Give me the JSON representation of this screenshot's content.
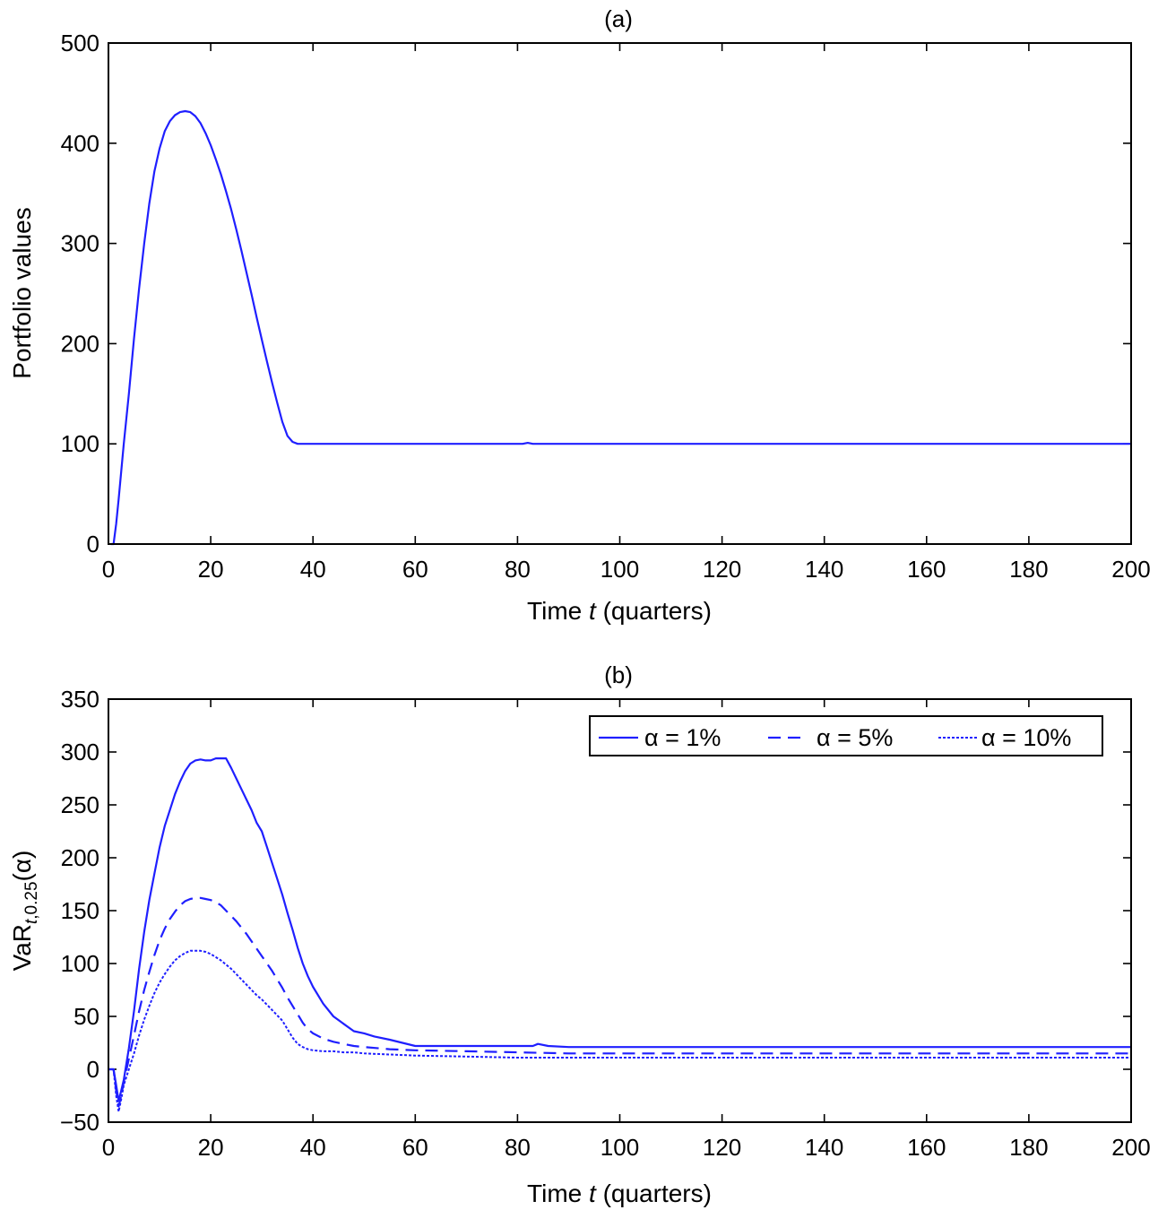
{
  "chart_data": [
    {
      "type": "line",
      "title": "(a)",
      "xlabel": "Time t (quarters)",
      "xlabel_parts": {
        "pre": "Time ",
        "italic": "t",
        "post": " (quarters)"
      },
      "ylabel": "Portfolio values",
      "xlim": [
        0,
        200
      ],
      "ylim": [
        0,
        500
      ],
      "xticks": [
        0,
        20,
        40,
        60,
        80,
        100,
        120,
        140,
        160,
        180,
        200
      ],
      "yticks": [
        0,
        100,
        200,
        300,
        400,
        500
      ],
      "grid": false,
      "series": [
        {
          "color": "#1f1fff",
          "style": "solid",
          "x": [
            0.5,
            1,
            1.5,
            2,
            3,
            4,
            5,
            6,
            7,
            8,
            9,
            10,
            11,
            12,
            13,
            14,
            15,
            16,
            17,
            18,
            19,
            20,
            21,
            22,
            23,
            24,
            25,
            26,
            27,
            28,
            29,
            30,
            31,
            32,
            33,
            34,
            35,
            36,
            37,
            38,
            40,
            50,
            60,
            70,
            80,
            81,
            82,
            83,
            90,
            100,
            120,
            140,
            160,
            180,
            200
          ],
          "y": [
            0,
            0,
            20,
            45,
            100,
            150,
            205,
            255,
            300,
            340,
            372,
            395,
            412,
            422,
            428,
            431,
            432,
            431,
            427,
            420,
            410,
            398,
            384,
            369,
            352,
            334,
            314,
            293,
            271,
            249,
            226,
            204,
            182,
            161,
            141,
            122,
            108,
            102,
            100,
            100,
            100,
            100,
            100,
            100,
            100,
            100,
            101,
            100,
            100,
            100,
            100,
            100,
            100,
            100,
            100
          ]
        }
      ]
    },
    {
      "type": "line",
      "title": "(b)",
      "xlabel": "Time t (quarters)",
      "xlabel_parts": {
        "pre": "Time ",
        "italic": "t",
        "post": " (quarters)"
      },
      "ylabel": "VaRt,0.25(α)",
      "ylabel_parts": {
        "main": "VaR",
        "sub_italic": "t",
        "sub": ",0.25",
        "post": "(α)"
      },
      "xlim": [
        0,
        200
      ],
      "ylim": [
        -50,
        350
      ],
      "xticks": [
        0,
        20,
        40,
        60,
        80,
        100,
        120,
        140,
        160,
        180,
        200
      ],
      "yticks": [
        -50,
        0,
        50,
        100,
        150,
        200,
        250,
        300,
        350
      ],
      "ytick_labels": [
        "−50",
        "0",
        "50",
        "100",
        "150",
        "200",
        "250",
        "300",
        "350"
      ],
      "grid": false,
      "legend": {
        "placement": "top-right"
      },
      "series": [
        {
          "name": "α = 1%",
          "color": "#1f1fff",
          "style": "solid",
          "x": [
            0,
            1,
            1.5,
            2,
            2.5,
            3,
            4,
            5,
            6,
            7,
            8,
            9,
            10,
            11,
            12,
            13,
            14,
            15,
            16,
            17,
            18,
            19,
            20,
            21,
            22,
            23,
            24,
            25,
            26,
            27,
            28,
            29,
            30,
            31,
            32,
            33,
            34,
            35,
            36,
            37,
            38,
            39,
            40,
            42,
            44,
            46,
            48,
            50,
            52,
            55,
            60,
            65,
            70,
            75,
            80,
            83,
            84,
            86,
            90,
            100,
            120,
            140,
            160,
            180,
            200
          ],
          "y": [
            0,
            0,
            -15,
            -30,
            -20,
            -10,
            20,
            55,
            95,
            130,
            160,
            185,
            210,
            230,
            245,
            260,
            272,
            282,
            289,
            292,
            293,
            292,
            292,
            294,
            294,
            294,
            285,
            275,
            265,
            255,
            245,
            233,
            225,
            210,
            195,
            180,
            165,
            148,
            132,
            115,
            100,
            88,
            78,
            62,
            50,
            43,
            36,
            34,
            31,
            28,
            22,
            22,
            22,
            22,
            22,
            22,
            24,
            22,
            21,
            21,
            21,
            21,
            21,
            21,
            21
          ]
        },
        {
          "name": "α = 5%",
          "color": "#1f1fff",
          "style": "dashed",
          "x": [
            0,
            1,
            1.5,
            2,
            2.5,
            3,
            4,
            5,
            6,
            7,
            8,
            9,
            10,
            11,
            12,
            13,
            14,
            15,
            16,
            17,
            18,
            19,
            20,
            21,
            22,
            23,
            24,
            25,
            26,
            27,
            28,
            29,
            30,
            31,
            32,
            33,
            34,
            35,
            36,
            37,
            38,
            39,
            40,
            42,
            44,
            46,
            48,
            50,
            55,
            60,
            70,
            80,
            90,
            100,
            120,
            140,
            160,
            180,
            200
          ],
          "y": [
            0,
            0,
            -20,
            -35,
            -25,
            -12,
            10,
            32,
            55,
            75,
            92,
            108,
            122,
            133,
            142,
            149,
            155,
            159,
            161,
            162,
            162,
            161,
            160,
            158,
            155,
            150,
            145,
            140,
            134,
            128,
            121,
            114,
            107,
            100,
            93,
            85,
            77,
            68,
            60,
            52,
            44,
            38,
            34,
            29,
            26,
            24,
            22,
            21,
            19,
            18,
            17,
            16,
            15,
            15,
            15,
            15,
            15,
            15,
            15
          ]
        },
        {
          "name": "α = 10%",
          "color": "#1f1fff",
          "style": "dotted",
          "x": [
            0,
            1,
            1.5,
            2,
            2.5,
            3,
            4,
            5,
            6,
            7,
            8,
            9,
            10,
            11,
            12,
            13,
            14,
            15,
            16,
            17,
            18,
            19,
            20,
            21,
            22,
            23,
            24,
            25,
            26,
            27,
            28,
            29,
            30,
            31,
            32,
            33,
            34,
            35,
            36,
            37,
            38,
            39,
            40,
            42,
            44,
            46,
            48,
            50,
            55,
            60,
            70,
            80,
            90,
            100,
            120,
            140,
            160,
            180,
            200
          ],
          "y": [
            0,
            0,
            -25,
            -40,
            -28,
            -15,
            0,
            15,
            32,
            47,
            60,
            72,
            82,
            90,
            97,
            103,
            107,
            110,
            112,
            112,
            112,
            111,
            109,
            106,
            103,
            99,
            95,
            90,
            85,
            80,
            75,
            70,
            66,
            61,
            56,
            51,
            46,
            38,
            30,
            24,
            21,
            19,
            18,
            17,
            17,
            16,
            16,
            15,
            14,
            13,
            12,
            11,
            11,
            11,
            11,
            11,
            11,
            11,
            11
          ]
        }
      ]
    }
  ]
}
